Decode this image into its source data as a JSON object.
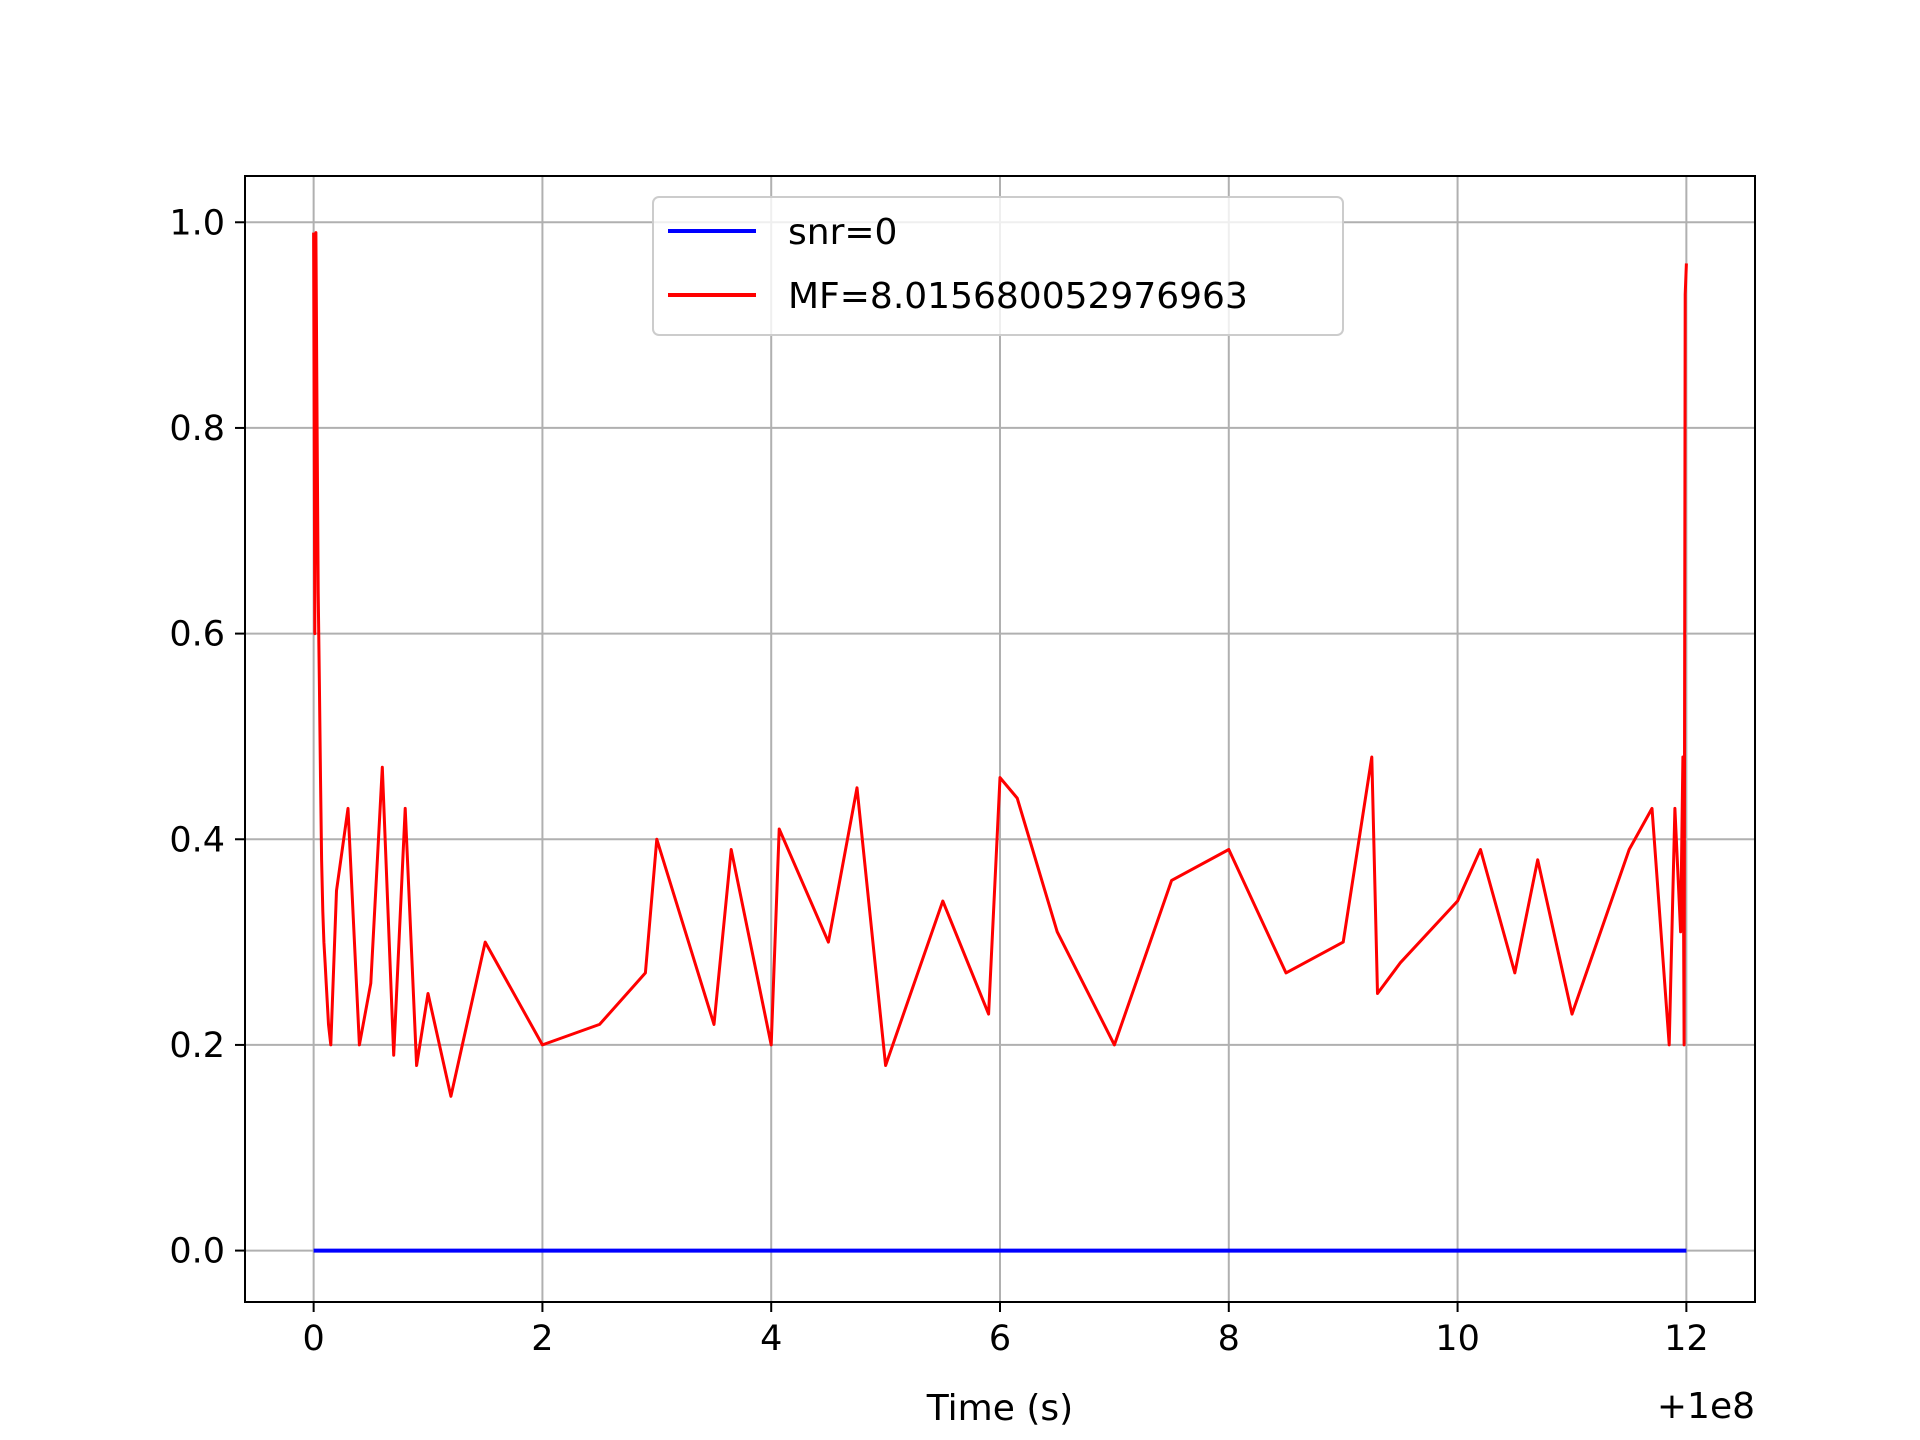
{
  "chart_data": {
    "type": "line",
    "title": "",
    "xlabel": "Time (s)",
    "ylabel": "",
    "x_offset_label": "+1e8",
    "xlim": [
      -0.6,
      12.6
    ],
    "ylim": [
      -0.05,
      1.045
    ],
    "x_ticks": [
      0,
      2,
      4,
      6,
      8,
      10,
      12
    ],
    "y_ticks": [
      0.0,
      0.2,
      0.4,
      0.6,
      0.8,
      1.0
    ],
    "x_tick_labels": [
      "0",
      "2",
      "4",
      "6",
      "8",
      "10",
      "12"
    ],
    "y_tick_labels": [
      "0.0",
      "0.2",
      "0.4",
      "0.6",
      "0.8",
      "1.0"
    ],
    "grid": true,
    "legend_position": "upper center",
    "series": [
      {
        "name": "snr=0",
        "color": "#0000ff",
        "x": [
          0,
          12
        ],
        "y": [
          0,
          0
        ]
      },
      {
        "name": "MF=8.015680052976963",
        "color": "#ff0000",
        "x": [
          0,
          0.01,
          0.02,
          0.03,
          0.04,
          0.05,
          0.06,
          0.07,
          0.08,
          0.09,
          0.1,
          0.11,
          0.13,
          0.15,
          0.2,
          0.3,
          0.4,
          0.5,
          0.6,
          0.7,
          0.8,
          0.9,
          1.0,
          1.2,
          1.5,
          2.0,
          2.5,
          2.9,
          3.0,
          3.5,
          3.65,
          4.0,
          4.07,
          4.5,
          4.75,
          5.0,
          5.5,
          5.9,
          6.0,
          6.15,
          6.5,
          7.0,
          7.5,
          8.0,
          8.5,
          9.0,
          9.25,
          9.3,
          9.5,
          10.0,
          10.2,
          10.5,
          10.7,
          11.0,
          11.5,
          11.7,
          11.85,
          11.9,
          11.95,
          11.97,
          11.98,
          11.99,
          12.0
        ],
        "y": [
          0.99,
          0.6,
          0.99,
          0.8,
          0.64,
          0.55,
          0.46,
          0.38,
          0.33,
          0.3,
          0.28,
          0.26,
          0.22,
          0.2,
          0.35,
          0.43,
          0.2,
          0.26,
          0.47,
          0.19,
          0.43,
          0.18,
          0.25,
          0.15,
          0.3,
          0.2,
          0.22,
          0.27,
          0.4,
          0.22,
          0.39,
          0.2,
          0.41,
          0.3,
          0.45,
          0.18,
          0.34,
          0.23,
          0.46,
          0.44,
          0.31,
          0.2,
          0.36,
          0.39,
          0.27,
          0.3,
          0.48,
          0.25,
          0.28,
          0.34,
          0.39,
          0.27,
          0.38,
          0.23,
          0.39,
          0.43,
          0.2,
          0.43,
          0.31,
          0.48,
          0.2,
          0.93,
          0.96
        ]
      }
    ]
  }
}
